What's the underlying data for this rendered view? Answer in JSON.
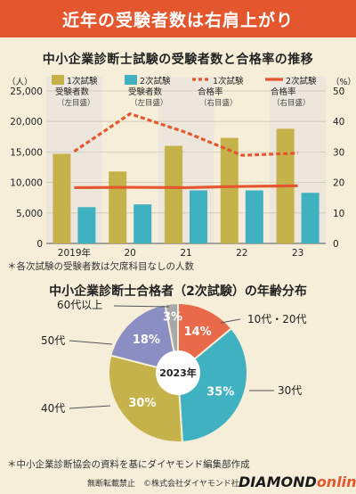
{
  "banner": "近年の受験者数は右肩上がり",
  "chart_data": [
    {
      "type": "bar",
      "title": "中小企業診断士試験の受験者数と合格率の推移",
      "categories": [
        "2019年",
        "20",
        "21",
        "22",
        "23"
      ],
      "left_axis": {
        "unit": "（人）",
        "ticks": [
          "0",
          "5,000",
          "10,000",
          "15,000",
          "20,000",
          "25,000"
        ],
        "ylim": [
          0,
          25000
        ]
      },
      "right_axis": {
        "unit": "（%）",
        "ticks": [
          "0",
          "10",
          "20",
          "30",
          "40",
          "50"
        ],
        "ylim": [
          0,
          50
        ]
      },
      "series": [
        {
          "name": "1次試験受験者数",
          "note": "（左目盛）",
          "kind": "bar",
          "color": "#c6b24a",
          "values": [
            14700,
            11800,
            16000,
            17300,
            18800
          ]
        },
        {
          "name": "2次試験受験者数",
          "note": "（左目盛）",
          "kind": "bar",
          "color": "#3fb1c1",
          "values": [
            5950,
            6400,
            8700,
            8700,
            8300
          ]
        },
        {
          "name": "1次試験合格率",
          "note": "（右目盛）",
          "kind": "dashed-line",
          "color": "#e4572e",
          "values": [
            30.2,
            42.5,
            36.4,
            28.9,
            29.6
          ]
        },
        {
          "name": "2次試験合格率",
          "note": "（右目盛）",
          "kind": "line",
          "color": "#e4572e",
          "values": [
            18.3,
            18.4,
            18.3,
            18.7,
            18.9
          ]
        }
      ],
      "footnote": "＊各次試験の受験者数は欠席科目なしの人数"
    },
    {
      "type": "pie",
      "title": "中小企業診断士合格者（2次試験）の年齢分布",
      "center_label": "2023年",
      "slices": [
        {
          "label": "10代・20代",
          "value": 14,
          "text": "14%",
          "color": "#e86a4a"
        },
        {
          "label": "30代",
          "value": 35,
          "text": "35%",
          "color": "#3fb1c1"
        },
        {
          "label": "40代",
          "value": 30,
          "text": "30%",
          "color": "#c6b24a"
        },
        {
          "label": "50代",
          "value": 18,
          "text": "18%",
          "color": "#8a8ec3"
        },
        {
          "label": "60代以上",
          "value": 3,
          "text": "3%",
          "color": "#a8a8a8"
        }
      ]
    }
  ],
  "source_note": "＊中小企業診断協会の資料を基にダイヤモンド編集部作成",
  "footer": {
    "copyright": "無断転載禁止　©株式会社ダイヤモンド社",
    "logo_main": "DIAMOND",
    "logo_sub": "online"
  }
}
